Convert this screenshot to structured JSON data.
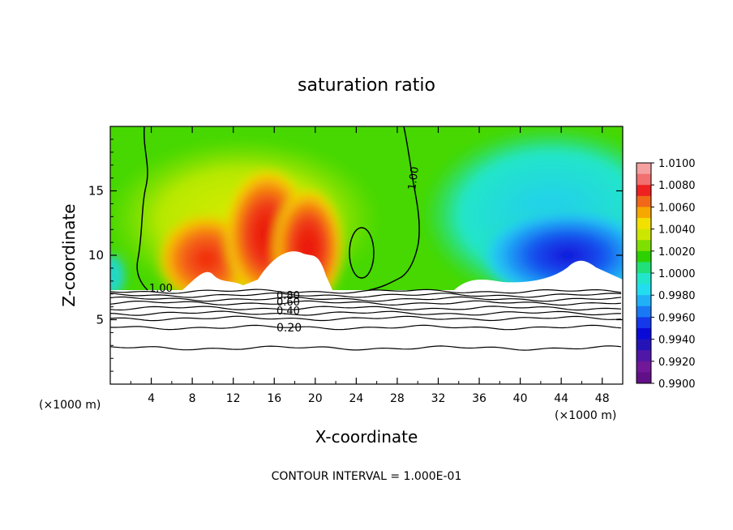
{
  "chart_data": {
    "type": "heatmap",
    "title": "saturation ratio",
    "xlabel": "X-coordinate",
    "ylabel": "Z-coordinate",
    "x_unit_left": "(×1000 m)",
    "x_unit_right": "(×1000 m)",
    "footer": "CONTOUR INTERVAL = 1.000E-01",
    "xlim": [
      0,
      50
    ],
    "ylim": [
      0,
      20
    ],
    "x_ticks": [
      4,
      8,
      12,
      16,
      20,
      24,
      28,
      32,
      36,
      40,
      44,
      48
    ],
    "y_ticks": [
      5,
      10,
      15
    ],
    "colorbar": {
      "levels": [
        "1.0100",
        "1.0080",
        "1.0060",
        "1.0040",
        "1.0020",
        "1.0000",
        "0.9980",
        "0.9960",
        "0.9940",
        "0.9920",
        "0.9900"
      ],
      "colors": [
        "#f4a0a0",
        "#f27070",
        "#ee2020",
        "#f06818",
        "#f7a800",
        "#f2e000",
        "#cde600",
        "#7ee000",
        "#2dd000",
        "#20e07a",
        "#22e6cc",
        "#22ddf0",
        "#20b0f6",
        "#1a78f4",
        "#1438ea",
        "#0a0ad8",
        "#2414b8",
        "#5016a8",
        "#701898",
        "#621088"
      ]
    },
    "contour_labels": [
      {
        "text": "1.00",
        "x": 4.2,
        "z": 7.4
      },
      {
        "text": "1.00",
        "x": 29.5,
        "z": 16.0
      },
      {
        "text": "0.80",
        "x": 16.9,
        "z": 6.9
      },
      {
        "text": "0.60",
        "x": 16.9,
        "z": 6.5
      },
      {
        "text": "0.40",
        "x": 16.9,
        "z": 5.6
      },
      {
        "text": "0.20",
        "x": 16.9,
        "z": 4.3
      }
    ],
    "surface_contours_z": [
      2.8,
      4.4,
      5.1,
      5.5,
      5.9,
      6.3,
      6.6,
      6.9,
      7.2
    ]
  }
}
